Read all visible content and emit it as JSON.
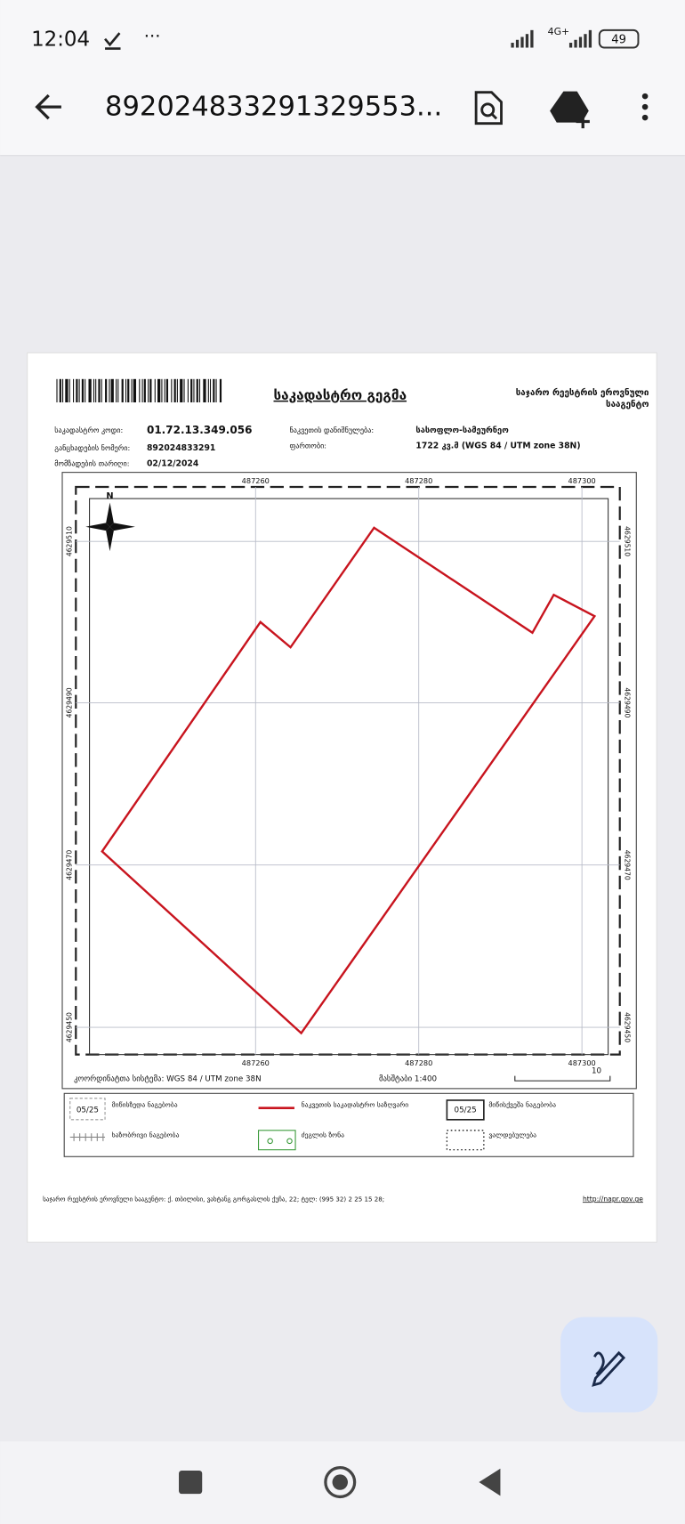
{
  "status_bar": {
    "time": "12:04",
    "network": "4G+",
    "battery": "49"
  },
  "toolbar": {
    "title": "892024833291329553..."
  },
  "document": {
    "title": "საკადასტრო გეგმა",
    "agency_lines": [
      "საჯარო რეესტრის ეროვნული",
      "სააგენტო"
    ],
    "fields": [
      {
        "label": "საკადასტრო კოდი:",
        "value": "01.72.13.349.056"
      },
      {
        "label": "განცხადების ნომერი:",
        "value": "892024833291"
      },
      {
        "label": "მომზადების თარიღი:",
        "value": "02/12/2024"
      },
      {
        "label": "ნაკვეთის დანიშნულება:",
        "value": "სასოფლო-სამეურნეო"
      },
      {
        "label": "ფართობი:",
        "value": "1722 კვ.მ (WGS 84 / UTM zone 38N)"
      }
    ],
    "map": {
      "north": "N",
      "x_labels": [
        "487260",
        "487280",
        "487300"
      ],
      "y_labels": [
        "4629510",
        "4629490",
        "4629470",
        "4629450"
      ],
      "coordinate_system": "კოორდინატთა სისტემა: WGS 84 / UTM zone 38N",
      "scale": "მასშტაბი 1:400",
      "scale_bar_label": "10"
    },
    "legend": [
      {
        "sample": "05/25",
        "label": "მიწისზედა ნაგებობა"
      },
      {
        "label": "ნაკვეთის საკადასტრო საზღვარი"
      },
      {
        "sample": "05/25",
        "label": "მიწისქვეშა ნაგებობა"
      },
      {
        "label": "ხაზობრივი ნაგებობა"
      },
      {
        "label": "ძეგლის ზონა"
      },
      {
        "label": "ვალდებულება"
      }
    ],
    "footer": {
      "address": "საჯარო რეესტრის ეროვნული სააგენტო: ქ. თბილისი, ვახტანგ გორგასლის ქუჩა, 22; ტელ: (995 32) 2 25 15 28;",
      "link": "http://napr.gov.ge"
    }
  }
}
